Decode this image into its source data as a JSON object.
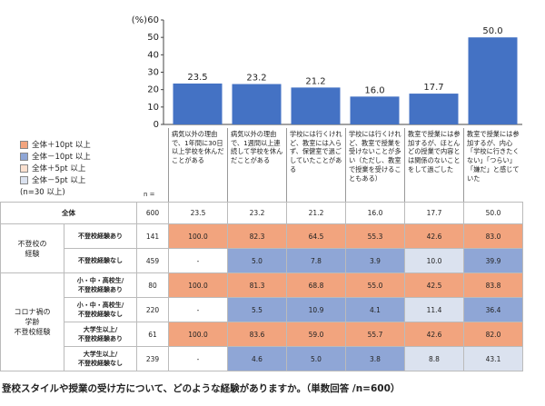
{
  "chart_data": {
    "type": "bar",
    "y_label": "(%)",
    "categories": [
      "病気以外の理由で、1年間に30日以上学校を休んだことがある",
      "病気以外の理由で、1週間以上連続して学校を休んだことがある",
      "学校には行くけれど、教室には入らず、保健室で過ごしていたことがある",
      "学校には行くけれど、教室で授業を受けないことが多い（ただし、教室で授業を受けることもある）",
      "教室で授業には参加するが、ほとんどの授業で内容とは関係のないことをして過ごした",
      "教室で授業には参加するが、内心「学校に行きたくない」「つらい」「嫌だ」と感じていた"
    ],
    "values": [
      23.5,
      23.2,
      21.2,
      16,
      17.7,
      50
    ],
    "value_labels": [
      "23.5",
      "23.2",
      "21.2",
      "16.0",
      "17.7",
      "50.0"
    ],
    "color": "#4472c4",
    "ylim": [
      0,
      60
    ],
    "yticks": [
      0,
      10,
      20,
      30,
      40,
      50,
      60
    ]
  },
  "legend": {
    "items": [
      {
        "label": "全体＋10pt 以上",
        "color": "#f2a47e"
      },
      {
        "label": "全体－10pt 以上",
        "color": "#8fa6d6"
      },
      {
        "label": "全体＋5pt 以上",
        "color": "#fbe0cf"
      },
      {
        "label": "全体－5pt 以上",
        "color": "#dbe2ef"
      }
    ],
    "note": "(n=30 以上)"
  },
  "table": {
    "n_label": "n =",
    "total": {
      "label": "全体",
      "n": "600",
      "cells": [
        "23.5",
        "23.2",
        "21.2",
        "16.0",
        "17.7",
        "50.0"
      ]
    },
    "groups": [
      {
        "label": "不登校の\n経験",
        "rows": [
          {
            "label": "不登校経験あり",
            "n": "141",
            "cells": [
              "100.0",
              "82.3",
              "64.5",
              "55.3",
              "42.6",
              "83.0"
            ],
            "colors": [
              "#f2a47e",
              "#f2a47e",
              "#f2a47e",
              "#f2a47e",
              "#f2a47e",
              "#f2a47e"
            ]
          },
          {
            "label": "不登校経験なし",
            "n": "459",
            "cells": [
              "-",
              "5.0",
              "7.8",
              "3.9",
              "10.0",
              "39.9"
            ],
            "colors": [
              null,
              "#8fa6d6",
              "#8fa6d6",
              "#8fa6d6",
              "#dbe2ef",
              "#8fa6d6"
            ]
          }
        ]
      },
      {
        "label": "コロナ禍の\n学齢\n不登校経験",
        "rows": [
          {
            "label": "小・中・高校生/\n不登校経験あり",
            "n": "80",
            "cells": [
              "100.0",
              "81.3",
              "68.8",
              "55.0",
              "42.5",
              "83.8"
            ],
            "colors": [
              "#f2a47e",
              "#f2a47e",
              "#f2a47e",
              "#f2a47e",
              "#f2a47e",
              "#f2a47e"
            ]
          },
          {
            "label": "小・中・高校生/\n不登校経験なし",
            "n": "220",
            "cells": [
              "-",
              "5.5",
              "10.9",
              "4.1",
              "11.4",
              "36.4"
            ],
            "colors": [
              null,
              "#8fa6d6",
              "#8fa6d6",
              "#8fa6d6",
              "#dbe2ef",
              "#8fa6d6"
            ]
          },
          {
            "label": "大学生以上/\n不登校経験あり",
            "n": "61",
            "cells": [
              "100.0",
              "83.6",
              "59.0",
              "55.7",
              "42.6",
              "82.0"
            ],
            "colors": [
              "#f2a47e",
              "#f2a47e",
              "#f2a47e",
              "#f2a47e",
              "#f2a47e",
              "#f2a47e"
            ]
          },
          {
            "label": "大学生以上/\n不登校経験なし",
            "n": "239",
            "cells": [
              "-",
              "4.6",
              "5.0",
              "3.8",
              "8.8",
              "43.1"
            ],
            "colors": [
              null,
              "#8fa6d6",
              "#8fa6d6",
              "#8fa6d6",
              "#dbe2ef",
              "#dbe2ef"
            ]
          }
        ]
      }
    ]
  },
  "footer": "登校スタイルや授業の受け方について、どのような経験がありますか。（単数回答 /n=600）"
}
